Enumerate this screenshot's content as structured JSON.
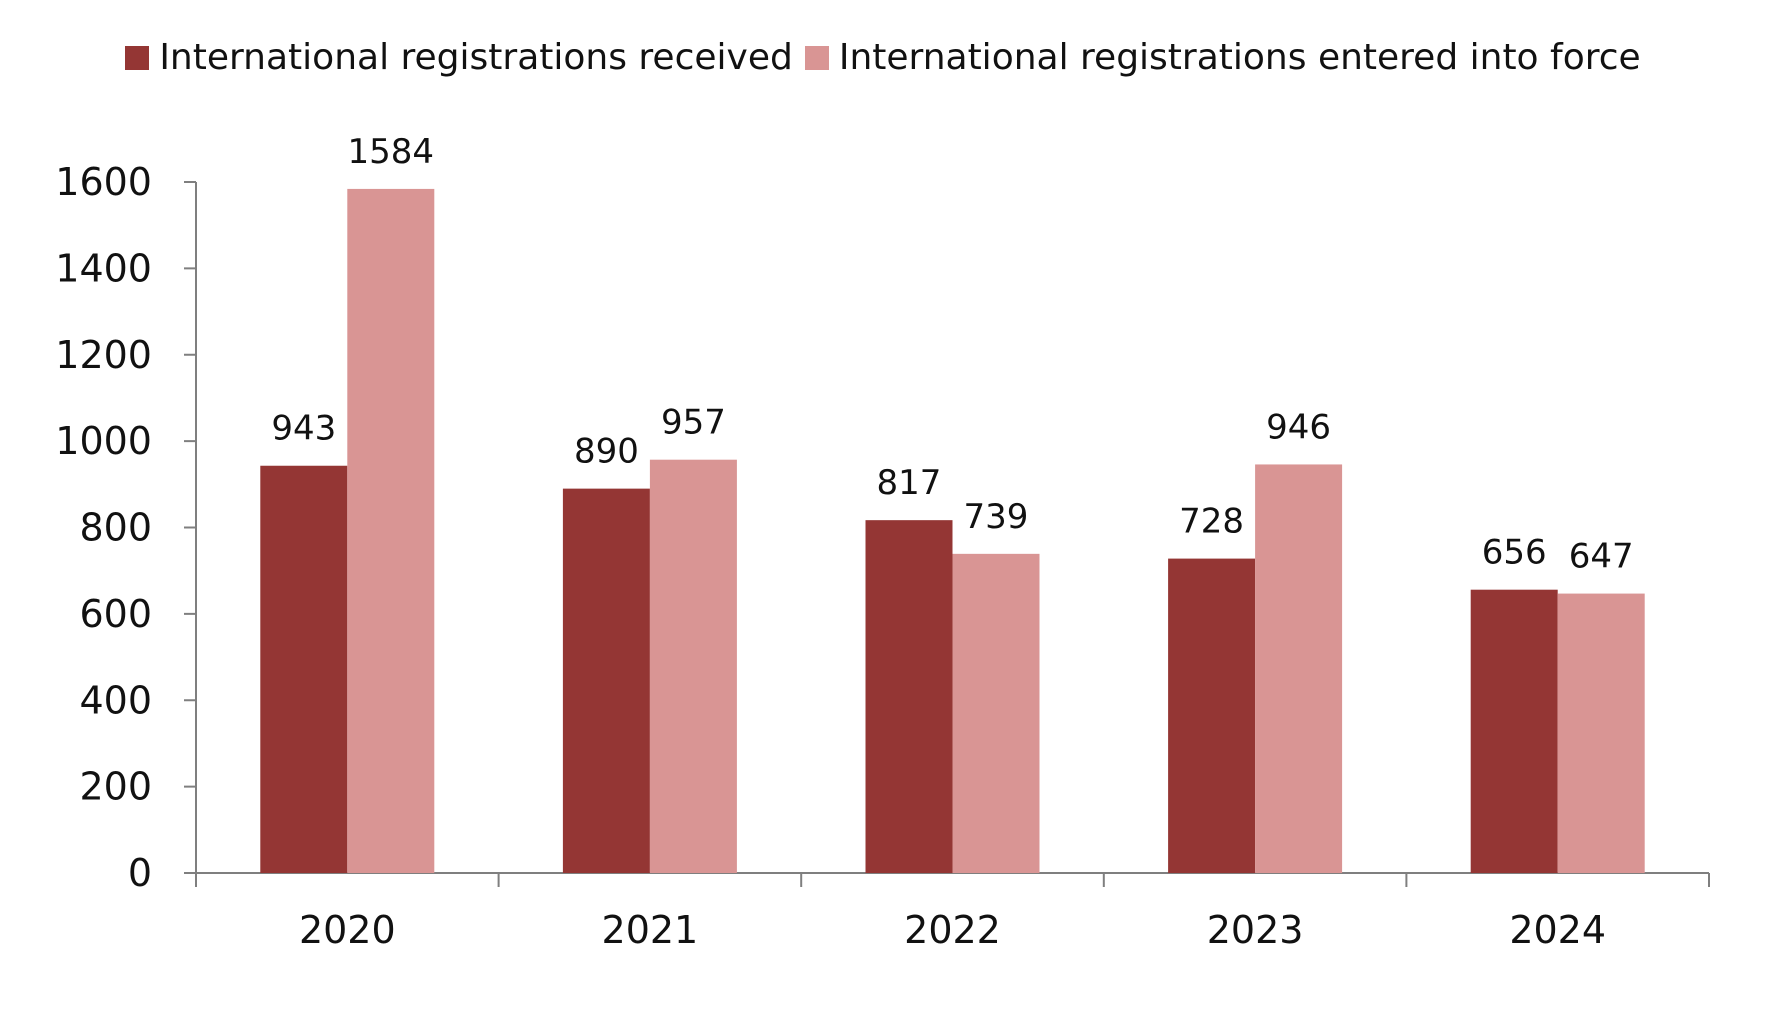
{
  "chart_data": {
    "type": "bar",
    "categories": [
      "2020",
      "2021",
      "2022",
      "2023",
      "2024"
    ],
    "series": [
      {
        "name": "International registrations received",
        "values": [
          943,
          890,
          817,
          728,
          656
        ],
        "color": "#943634"
      },
      {
        "name": "International registrations entered into force",
        "values": [
          1584,
          957,
          739,
          946,
          647
        ],
        "color": "#d99594"
      }
    ],
    "title": "",
    "xlabel": "",
    "ylabel": "",
    "ylim": [
      0,
      1600
    ],
    "yticks": [
      0,
      200,
      400,
      600,
      800,
      1000,
      1200,
      1400,
      1600
    ],
    "ytick_labels": [
      "0",
      "200",
      "400",
      "600",
      "800",
      "1000",
      "1200",
      "1400",
      "1600"
    ],
    "grid": false,
    "legend_position": "top-center",
    "axis_color": "#7f7f7f"
  }
}
